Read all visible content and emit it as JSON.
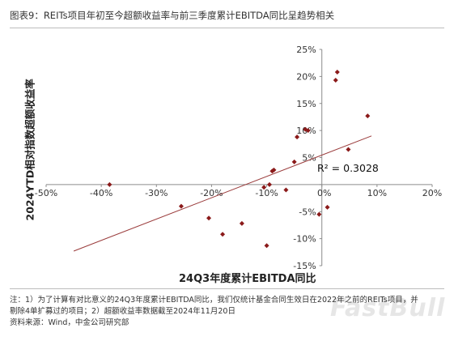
{
  "title": "图表9：REITs项目年初至今超额收益率与前三季度累计EBITDA同比呈趋势相关",
  "chart_data": {
    "type": "scatter",
    "xlabel": "24Q3年度累计EBITDA同比",
    "ylabel": "2024YTD相对指数超额收益率",
    "xlim": [
      -0.5,
      0.2
    ],
    "ylim": [
      -0.15,
      0.25
    ],
    "xticks": [
      -0.5,
      -0.4,
      -0.3,
      -0.2,
      -0.1,
      0,
      0.1,
      0.2
    ],
    "yticks": [
      -0.15,
      -0.1,
      -0.05,
      0,
      0.05,
      0.1,
      0.15,
      0.2,
      0.25
    ],
    "xtick_labels": [
      "-50%",
      "-40%",
      "-30%",
      "-20%",
      "-10%",
      "0%",
      "10%",
      "20%"
    ],
    "ytick_labels": [
      "-15%",
      "-10%",
      "-5%",
      "",
      "5%",
      "10%",
      "15%",
      "20%",
      "25%"
    ],
    "grid": false,
    "points": [
      {
        "x": -0.385,
        "y": 0.0
      },
      {
        "x": -0.255,
        "y": -0.04
      },
      {
        "x": -0.205,
        "y": -0.062
      },
      {
        "x": -0.18,
        "y": -0.092
      },
      {
        "x": -0.145,
        "y": -0.072
      },
      {
        "x": -0.1,
        "y": -0.113
      },
      {
        "x": -0.105,
        "y": -0.005
      },
      {
        "x": -0.095,
        "y": 0.0
      },
      {
        "x": -0.09,
        "y": 0.025
      },
      {
        "x": -0.087,
        "y": 0.027
      },
      {
        "x": -0.065,
        "y": -0.01
      },
      {
        "x": -0.05,
        "y": 0.042
      },
      {
        "x": -0.045,
        "y": 0.088
      },
      {
        "x": -0.03,
        "y": 0.102
      },
      {
        "x": -0.025,
        "y": 0.1
      },
      {
        "x": -0.005,
        "y": -0.055
      },
      {
        "x": 0.01,
        "y": -0.042
      },
      {
        "x": 0.025,
        "y": 0.193
      },
      {
        "x": 0.028,
        "y": 0.208
      },
      {
        "x": 0.048,
        "y": 0.065
      },
      {
        "x": 0.083,
        "y": 0.127
      }
    ],
    "trendline": {
      "x": [
        -0.45,
        0.09
      ],
      "y": [
        -0.123,
        0.09
      ]
    },
    "annotation": "R² = 0.3028",
    "marker_color": "#8b1a1a",
    "line_color": "#9a3b3b"
  },
  "notes": [
    "注：1）为了计算有对比意义的24Q3年度累计EBITDA同比，我们仅统计基金合同生效日在2022年之前的REITs项目，并",
    "剔除4单扩募过的项目；2）超额收益率数据截至2024年11月20日",
    "资料来源：Wind，中金公司研究部"
  ],
  "watermark": "FastBull"
}
